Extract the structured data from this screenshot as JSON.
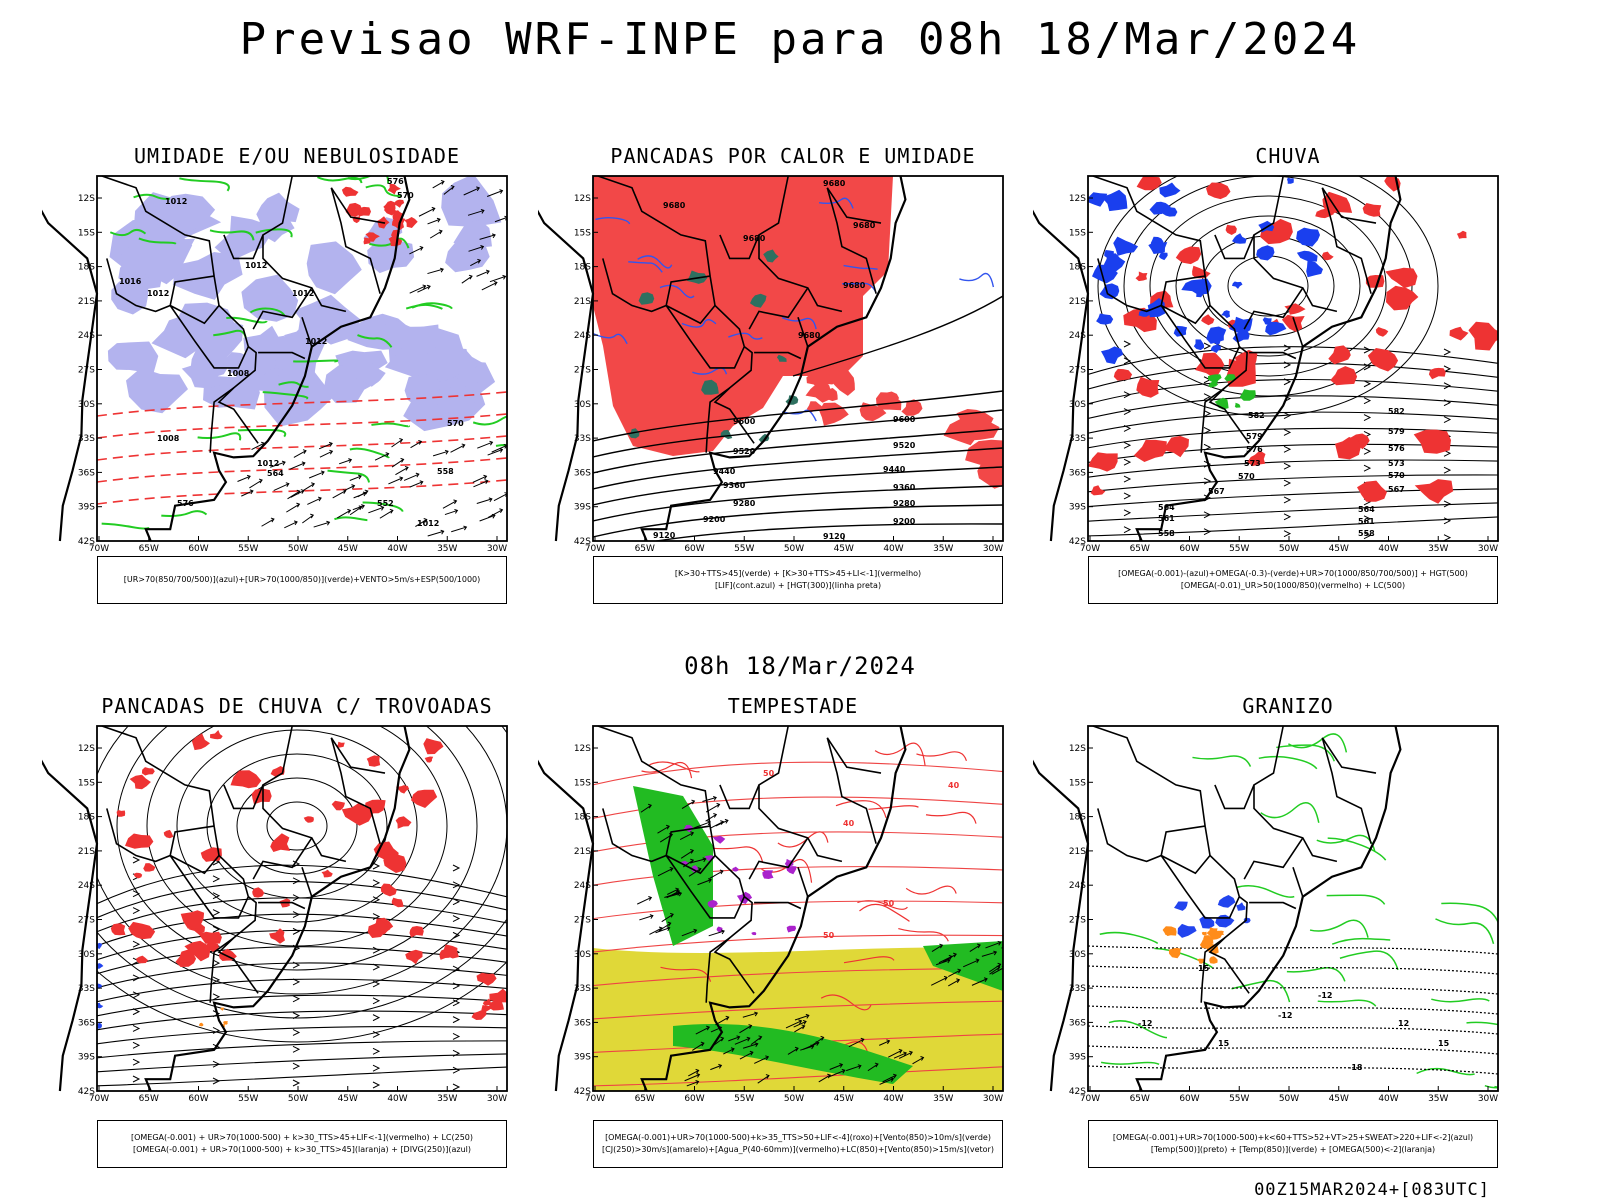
{
  "title": "Previsao WRF-INPE  para 08h 18/Mar/2024",
  "subtitle": "08h 18/Mar/2024",
  "footer": "00Z15MAR2024+[083UTC]",
  "axes": {
    "lat_labels": [
      "12S",
      "15S",
      "18S",
      "21S",
      "24S",
      "27S",
      "30S",
      "33S",
      "36S",
      "39S",
      "42S"
    ],
    "lon_labels": [
      "70W",
      "65W",
      "60W",
      "55W",
      "50W",
      "45W",
      "40W",
      "35W",
      "30W"
    ]
  },
  "panels": [
    {
      "title": "UMIDADE E/OU NEBULOSIDADE",
      "legend": [
        "[UR>70(850/700/500)](azul)+[UR>70(1000/850)](verde)+VENTO>5m/s+ESP(500/1000)"
      ],
      "contour_labels": [
        "1012",
        "1012",
        "1012",
        "1016",
        "1012",
        "1012",
        "1008",
        "1008",
        "1012",
        "576",
        "570",
        "564",
        "558",
        "552",
        "576",
        "570",
        "1012"
      ],
      "colors": {
        "fill": "#b3b3ee",
        "green": "#22cc22",
        "red": "#ee3333",
        "line": "#000000"
      }
    },
    {
      "title": "PANCADAS POR CALOR E UMIDADE",
      "legend": [
        "[K>30+TTS>45](verde) + [K>30+TTS>45+LI<-1](vermelho)",
        "[LIF](cont.azul) + [HGT(300)](linha preta)"
      ],
      "contour_labels": [
        "9680",
        "9680",
        "9680",
        "9680",
        "9680",
        "9680",
        "9600",
        "9520",
        "9440",
        "9360",
        "9280",
        "9200",
        "9120",
        "9600",
        "9520",
        "9440",
        "9360",
        "9280",
        "9200",
        "9120"
      ],
      "colors": {
        "fill": "#f24848",
        "green": "#2e7060",
        "blue": "#3355ee",
        "line": "#000000"
      }
    },
    {
      "title": "CHUVA",
      "legend": [
        "[OMEGA(-0.001)-(azul)+OMEGA(-0.3)-(verde)+UR>70(1000/850/700/500)] + HGT(500)",
        "[OMEGA(-0.01)_UR>50(1000/850)(vermelho) + LC(500)"
      ],
      "contour_labels": [
        "582",
        "579",
        "576",
        "573",
        "570",
        "567",
        "564",
        "561",
        "558",
        "582",
        "579",
        "576",
        "573",
        "570",
        "567",
        "564",
        "561",
        "558"
      ],
      "colors": {
        "red": "#ee3333",
        "blue": "#1a3fee",
        "green": "#22bb22",
        "line": "#000000"
      }
    },
    {
      "title": "PANCADAS DE CHUVA C/ TROVOADAS",
      "legend": [
        "[OMEGA(-0.001) + UR>70(1000-500) + k>30_TTS>45+LIF<-1](vermelho) + LC(250)",
        "[OMEGA(-0.001) + UR>70(1000-500) + k>30_TTS>45](laranja) + [DIVG(250)](azul)"
      ],
      "contour_labels": [],
      "colors": {
        "red": "#ee3333",
        "orange": "#ff8c1a",
        "blue": "#2244ee",
        "line": "#000000"
      }
    },
    {
      "title": "TEMPESTADE",
      "legend": [
        "[OMEGA(-0.001)+UR>70(1000-500)+k>35_TTS>50+LIF<-4](roxo)+[Vento(850)>10m/s](verde)",
        "[CJ(250)>30m/s](amarelo)+[Agua_P(40-60mm)](vermelho)+LC(850)+[Vento(850)>15m/s](vetor)"
      ],
      "contour_labels": [
        "40",
        "50",
        "50",
        "40",
        "50"
      ],
      "colors": {
        "yellow": "#e0d838",
        "green": "#22bb22",
        "purple": "#aa22cc",
        "red": "#ee3333",
        "line": "#000000"
      }
    },
    {
      "title": "GRANIZO",
      "legend": [
        "[OMEGA(-0.001)+UR>70(1000-500)+k<60+TTS>52+VT>25+SWEAT>220+LIF<-2](azul)",
        "[Temp(500)](preto) + [Temp(850)](verde) + [OMEGA(500)<-2](laranja)"
      ],
      "contour_labels": [
        "-12",
        "-12",
        "-12",
        "-18",
        "15",
        "15",
        "15",
        "12"
      ],
      "colors": {
        "green": "#22cc22",
        "blue": "#2244ee",
        "orange": "#ff8c1a",
        "line": "#000000"
      }
    }
  ]
}
